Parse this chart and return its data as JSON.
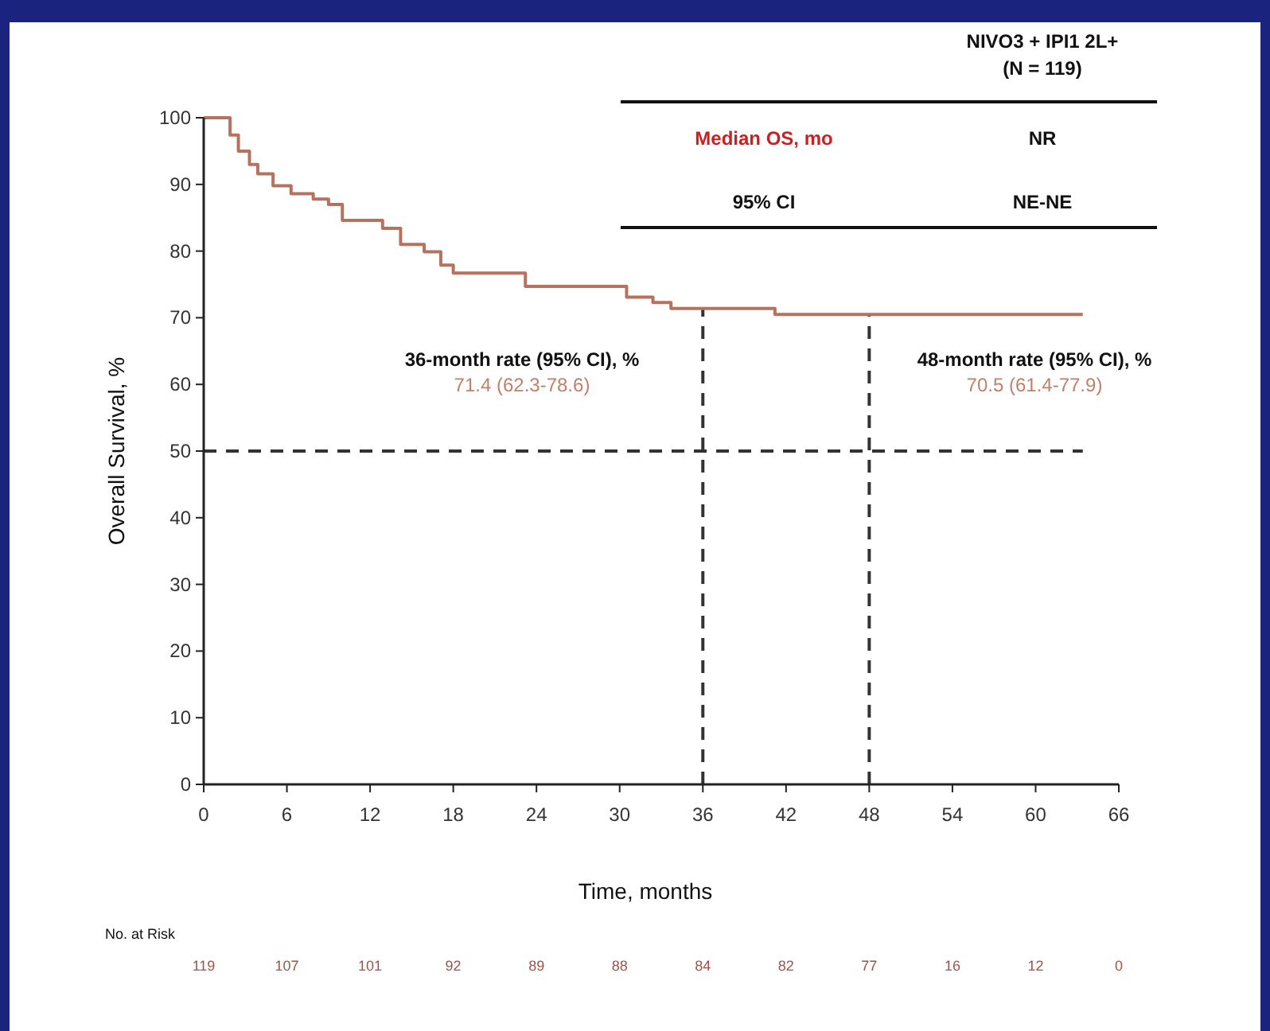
{
  "chart_data": {
    "type": "step",
    "xlabel": "Time, months",
    "ylabel": "Overall Survival, %",
    "series": [
      {
        "color": "#b5735f",
        "x": [
          0,
          1.7,
          1.9,
          2.5,
          3.3,
          3.9,
          5.0,
          6.3,
          7.9,
          9.0,
          10.0,
          12.9,
          14.2,
          15.9,
          17.1,
          18.0,
          23.2,
          30.5,
          32.4,
          33.7,
          41.2,
          63.4
        ],
        "values": [
          100,
          100,
          97.4,
          95,
          93,
          91.6,
          89.8,
          88.6,
          87.8,
          87,
          84.6,
          83.4,
          81,
          79.9,
          77.9,
          76.7,
          74.7,
          73.1,
          72.3,
          71.4,
          70.5,
          70.5
        ]
      }
    ],
    "xlim": [
      0,
      66
    ],
    "xticks": [
      0,
      6,
      12,
      18,
      24,
      30,
      36,
      42,
      48,
      54,
      60,
      66
    ],
    "ylim": [
      0,
      100
    ],
    "yticks": [
      0,
      10,
      20,
      30,
      40,
      50,
      60,
      70,
      80,
      90,
      100
    ],
    "line_style": "solid",
    "grid": false,
    "ref_lines": [
      {
        "axis": "y",
        "value": 50,
        "line_style": "dashed",
        "color": "#333333"
      },
      {
        "axis": "x",
        "value": 36,
        "line_style": "dashed",
        "color": "#333333"
      },
      {
        "axis": "x",
        "value": 48,
        "line_style": "dashed",
        "color": "#333333"
      }
    ],
    "annotations": [
      "NIVO3 + IPI1 2L+",
      "(N = 119)",
      "Median OS, mo",
      "NR",
      "95% CI",
      "NE-NE",
      "36-month rate (95% CI), %",
      "71.4 (62.3-78.6)",
      "48-month rate (95% CI), %",
      "70.5 (61.4-77.9)",
      "No. at Risk",
      "119",
      "107",
      "101",
      "92",
      "89",
      "88",
      "84",
      "82",
      "77",
      "16",
      "12",
      "0"
    ]
  }
}
